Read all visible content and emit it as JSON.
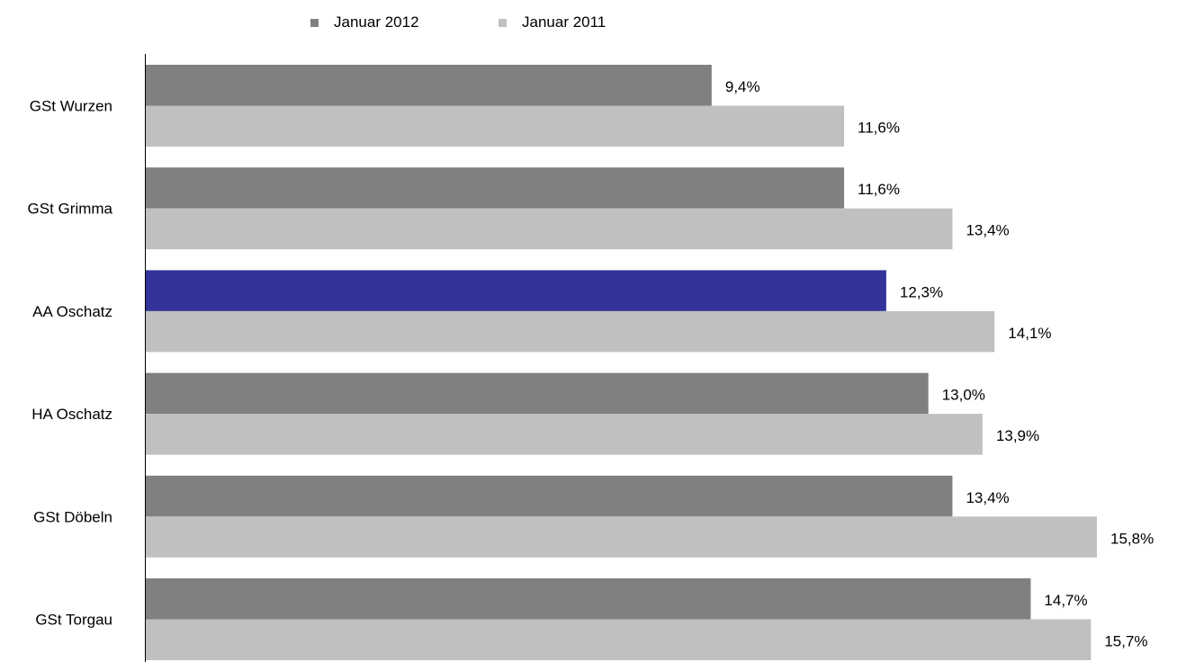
{
  "chart_data": {
    "type": "bar",
    "orientation": "horizontal",
    "categories": [
      "GSt Wurzen",
      "GSt Grimma",
      "AA Oschatz",
      "HA Oschatz",
      "GSt Döbeln",
      "GSt Torgau"
    ],
    "series": [
      {
        "name": "Januar 2012",
        "values": [
          9.4,
          11.6,
          12.3,
          13.0,
          13.4,
          14.7
        ],
        "labels": [
          "9,4%",
          "11,6%",
          "12,3%",
          "13,0%",
          "13,4%",
          "14,7%"
        ],
        "color": "#808080",
        "highlight": {
          "category_index": 2,
          "color": "#333399"
        }
      },
      {
        "name": "Januar 2011",
        "values": [
          11.6,
          13.4,
          14.1,
          13.9,
          15.8,
          15.7
        ],
        "labels": [
          "11,6%",
          "13,4%",
          "14,1%",
          "13,9%",
          "15,8%",
          "15,7%"
        ],
        "color": "#c0c0c0"
      }
    ],
    "xlim": [
      0,
      16
    ],
    "grid": false,
    "legend": "top-center",
    "title": "",
    "xlabel": "",
    "ylabel": ""
  }
}
